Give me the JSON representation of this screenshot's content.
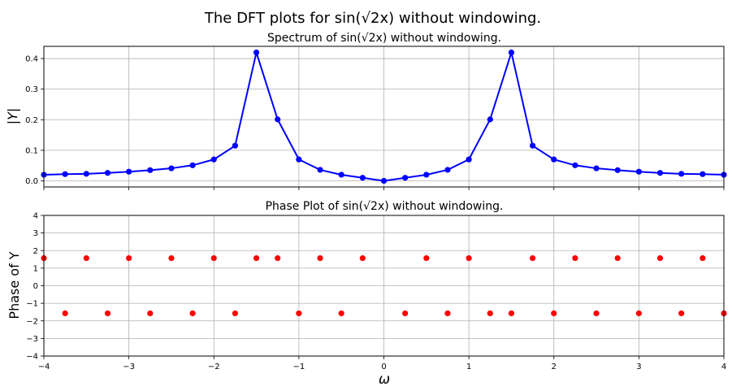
{
  "figure": {
    "title": "The DFT plots for sin(√2x) without windowing."
  },
  "chart_data": [
    {
      "type": "line",
      "title": "Spectrum of sin(√2x) without windowing.",
      "xlabel": "",
      "ylabel": "|Y|",
      "xlim": [
        -4,
        4
      ],
      "ylim": [
        -0.02,
        0.44
      ],
      "x_ticks": [
        -4,
        -3,
        -2,
        -1,
        0,
        1,
        2,
        3,
        4
      ],
      "y_ticks": [
        0.0,
        0.1,
        0.2,
        0.3,
        0.4
      ],
      "y_tick_labels": [
        "0.0",
        "0.1",
        "0.2",
        "0.3",
        "0.4"
      ],
      "grid": true,
      "color": "#0000ff",
      "marker": "circle",
      "series": [
        {
          "x": [
            -4.0,
            -3.75,
            -3.5,
            -3.25,
            -3.0,
            -2.75,
            -2.5,
            -2.25,
            -2.0,
            -1.75,
            -1.5,
            -1.25,
            -1.0,
            -0.75,
            -0.5,
            -0.25,
            0.0,
            0.25,
            0.5,
            0.75,
            1.0,
            1.25,
            1.5,
            1.75,
            2.0,
            2.25,
            2.5,
            2.75,
            3.0,
            3.25,
            3.5,
            3.75,
            4.0
          ],
          "y": [
            0.02,
            0.022,
            0.023,
            0.026,
            0.03,
            0.035,
            0.041,
            0.051,
            0.07,
            0.115,
            0.42,
            0.201,
            0.07,
            0.036,
            0.02,
            0.01,
            0.0,
            0.01,
            0.02,
            0.036,
            0.07,
            0.201,
            0.42,
            0.115,
            0.07,
            0.051,
            0.041,
            0.035,
            0.03,
            0.026,
            0.023,
            0.022,
            0.02
          ]
        }
      ]
    },
    {
      "type": "scatter",
      "title": "Phase Plot of sin(√2x) without windowing.",
      "xlabel": "ω",
      "ylabel": "Phase of Y",
      "xlim": [
        -4,
        4
      ],
      "ylim": [
        -4,
        4
      ],
      "x_ticks": [
        -4,
        -3,
        -2,
        -1,
        0,
        1,
        2,
        3,
        4
      ],
      "x_tick_labels": [
        "−4",
        "−3",
        "−2",
        "−1",
        "0",
        "1",
        "2",
        "3",
        "4"
      ],
      "y_ticks": [
        -4,
        -3,
        -2,
        -1,
        0,
        1,
        2,
        3,
        4
      ],
      "y_tick_labels": [
        "−4",
        "−3",
        "−2",
        "−1",
        "0",
        "1",
        "2",
        "3",
        "4"
      ],
      "grid": true,
      "color": "#ff0000",
      "marker": "circle",
      "series": [
        {
          "x": [
            -4.0,
            -3.75,
            -3.5,
            -3.25,
            -3.0,
            -2.75,
            -2.5,
            -2.25,
            -2.0,
            -1.75,
            -1.5,
            -1.25,
            -1.0,
            -0.75,
            -0.5,
            -0.25,
            0.25,
            0.5,
            0.75,
            1.0,
            1.25,
            1.5,
            1.75,
            2.0,
            2.25,
            2.5,
            2.75,
            3.0,
            3.25,
            3.5,
            3.75,
            4.0
          ],
          "y": [
            1.57,
            -1.57,
            1.57,
            -1.57,
            1.57,
            -1.57,
            1.57,
            -1.57,
            1.57,
            -1.57,
            1.57,
            1.57,
            -1.57,
            1.57,
            -1.57,
            1.57,
            -1.57,
            1.57,
            -1.57,
            1.57,
            -1.57,
            -1.57,
            1.57,
            -1.57,
            1.57,
            -1.57,
            1.57,
            -1.57,
            1.57,
            -1.57,
            1.57,
            -1.57
          ]
        }
      ]
    }
  ]
}
